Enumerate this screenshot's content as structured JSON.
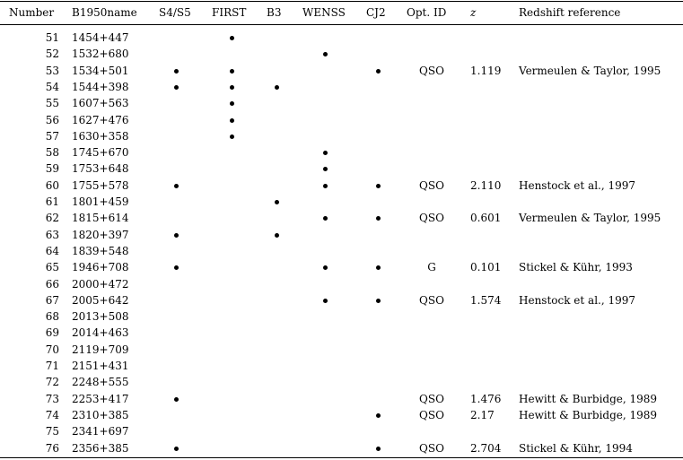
{
  "table": {
    "headers": {
      "number": "Number",
      "name": "B1950name",
      "s4s5": "S4/S5",
      "first": "FIRST",
      "b3": "B3",
      "wenss": "WENSS",
      "cj2": "CJ2",
      "optid": "Opt. ID",
      "z": "z",
      "ref": "Redshift reference"
    },
    "rows": [
      {
        "number": "51",
        "name": "1454+447",
        "s4s5": false,
        "first": true,
        "b3": false,
        "wenss": false,
        "cj2": false,
        "optid": "",
        "z": "",
        "ref": ""
      },
      {
        "number": "52",
        "name": "1532+680",
        "s4s5": false,
        "first": false,
        "b3": false,
        "wenss": true,
        "cj2": false,
        "optid": "",
        "z": "",
        "ref": ""
      },
      {
        "number": "53",
        "name": "1534+501",
        "s4s5": true,
        "first": true,
        "b3": false,
        "wenss": false,
        "cj2": true,
        "optid": "QSO",
        "z": "1.119",
        "ref": "Vermeulen & Taylor, 1995"
      },
      {
        "number": "54",
        "name": "1544+398",
        "s4s5": true,
        "first": true,
        "b3": true,
        "wenss": false,
        "cj2": false,
        "optid": "",
        "z": "",
        "ref": ""
      },
      {
        "number": "55",
        "name": "1607+563",
        "s4s5": false,
        "first": true,
        "b3": false,
        "wenss": false,
        "cj2": false,
        "optid": "",
        "z": "",
        "ref": ""
      },
      {
        "number": "56",
        "name": "1627+476",
        "s4s5": false,
        "first": true,
        "b3": false,
        "wenss": false,
        "cj2": false,
        "optid": "",
        "z": "",
        "ref": ""
      },
      {
        "number": "57",
        "name": "1630+358",
        "s4s5": false,
        "first": true,
        "b3": false,
        "wenss": false,
        "cj2": false,
        "optid": "",
        "z": "",
        "ref": ""
      },
      {
        "number": "58",
        "name": "1745+670",
        "s4s5": false,
        "first": false,
        "b3": false,
        "wenss": true,
        "cj2": false,
        "optid": "",
        "z": "",
        "ref": ""
      },
      {
        "number": "59",
        "name": "1753+648",
        "s4s5": false,
        "first": false,
        "b3": false,
        "wenss": true,
        "cj2": false,
        "optid": "",
        "z": "",
        "ref": ""
      },
      {
        "number": "60",
        "name": "1755+578",
        "s4s5": true,
        "first": false,
        "b3": false,
        "wenss": true,
        "cj2": true,
        "optid": "QSO",
        "z": "2.110",
        "ref": "Henstock et al., 1997"
      },
      {
        "number": "61",
        "name": "1801+459",
        "s4s5": false,
        "first": false,
        "b3": true,
        "wenss": false,
        "cj2": false,
        "optid": "",
        "z": "",
        "ref": ""
      },
      {
        "number": "62",
        "name": "1815+614",
        "s4s5": false,
        "first": false,
        "b3": false,
        "wenss": true,
        "cj2": true,
        "optid": "QSO",
        "z": "0.601",
        "ref": "Vermeulen & Taylor, 1995"
      },
      {
        "number": "63",
        "name": "1820+397",
        "s4s5": true,
        "first": false,
        "b3": true,
        "wenss": false,
        "cj2": false,
        "optid": "",
        "z": "",
        "ref": ""
      },
      {
        "number": "64",
        "name": "1839+548",
        "s4s5": false,
        "first": false,
        "b3": false,
        "wenss": false,
        "cj2": false,
        "optid": "",
        "z": "",
        "ref": ""
      },
      {
        "number": "65",
        "name": "1946+708",
        "s4s5": true,
        "first": false,
        "b3": false,
        "wenss": true,
        "cj2": true,
        "optid": "G",
        "z": "0.101",
        "ref": "Stickel & Kühr, 1993"
      },
      {
        "number": "66",
        "name": "2000+472",
        "s4s5": false,
        "first": false,
        "b3": false,
        "wenss": false,
        "cj2": false,
        "optid": "",
        "z": "",
        "ref": ""
      },
      {
        "number": "67",
        "name": "2005+642",
        "s4s5": false,
        "first": false,
        "b3": false,
        "wenss": true,
        "cj2": true,
        "optid": "QSO",
        "z": "1.574",
        "ref": "Henstock et al., 1997"
      },
      {
        "number": "68",
        "name": "2013+508",
        "s4s5": false,
        "first": false,
        "b3": false,
        "wenss": false,
        "cj2": false,
        "optid": "",
        "z": "",
        "ref": ""
      },
      {
        "number": "69",
        "name": "2014+463",
        "s4s5": false,
        "first": false,
        "b3": false,
        "wenss": false,
        "cj2": false,
        "optid": "",
        "z": "",
        "ref": ""
      },
      {
        "number": "70",
        "name": "2119+709",
        "s4s5": false,
        "first": false,
        "b3": false,
        "wenss": false,
        "cj2": false,
        "optid": "",
        "z": "",
        "ref": ""
      },
      {
        "number": "71",
        "name": "2151+431",
        "s4s5": false,
        "first": false,
        "b3": false,
        "wenss": false,
        "cj2": false,
        "optid": "",
        "z": "",
        "ref": ""
      },
      {
        "number": "72",
        "name": "2248+555",
        "s4s5": false,
        "first": false,
        "b3": false,
        "wenss": false,
        "cj2": false,
        "optid": "",
        "z": "",
        "ref": ""
      },
      {
        "number": "73",
        "name": "2253+417",
        "s4s5": true,
        "first": false,
        "b3": false,
        "wenss": false,
        "cj2": false,
        "optid": "QSO",
        "z": "1.476",
        "ref": "Hewitt & Burbidge, 1989"
      },
      {
        "number": "74",
        "name": "2310+385",
        "s4s5": false,
        "first": false,
        "b3": false,
        "wenss": false,
        "cj2": true,
        "optid": "QSO",
        "z": "2.17",
        "ref": "Hewitt & Burbidge, 1989"
      },
      {
        "number": "75",
        "name": "2341+697",
        "s4s5": false,
        "first": false,
        "b3": false,
        "wenss": false,
        "cj2": false,
        "optid": "",
        "z": "",
        "ref": ""
      },
      {
        "number": "76",
        "name": "2356+385",
        "s4s5": true,
        "first": false,
        "b3": false,
        "wenss": false,
        "cj2": true,
        "optid": "QSO",
        "z": "2.704",
        "ref": "Stickel & Kühr, 1994"
      }
    ]
  }
}
